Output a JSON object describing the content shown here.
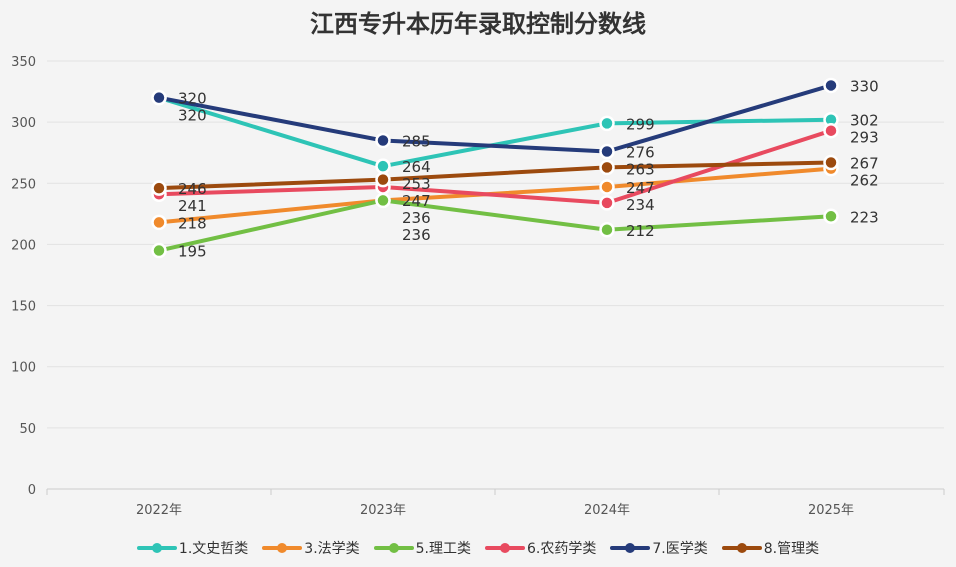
{
  "chart_data": {
    "type": "line",
    "title": "江西专升本历年录取控制分数线",
    "categories": [
      "2022年",
      "2023年",
      "2024年",
      "2025年"
    ],
    "ylim": [
      0,
      350
    ],
    "yticks": [
      0,
      50,
      100,
      150,
      200,
      250,
      300,
      350
    ],
    "grid": true,
    "legend_position": "bottom",
    "series": [
      {
        "name": "1.文史哲类",
        "color": "#2ec4b6",
        "values": [
          320,
          264,
          299,
          302
        ]
      },
      {
        "name": "3.法学类",
        "color": "#f08a2c",
        "values": [
          218,
          236,
          247,
          262
        ]
      },
      {
        "name": "5.理工类",
        "color": "#72bf44",
        "values": [
          195,
          236,
          212,
          223
        ]
      },
      {
        "name": "6.农药学类",
        "color": "#e84a5f",
        "values": [
          241,
          247,
          234,
          293
        ]
      },
      {
        "name": "7.医学类",
        "color": "#253b7a",
        "values": [
          320,
          285,
          276,
          330
        ]
      },
      {
        "name": "8.管理类",
        "color": "#9c4a0e",
        "values": [
          246,
          253,
          263,
          267
        ]
      }
    ]
  }
}
